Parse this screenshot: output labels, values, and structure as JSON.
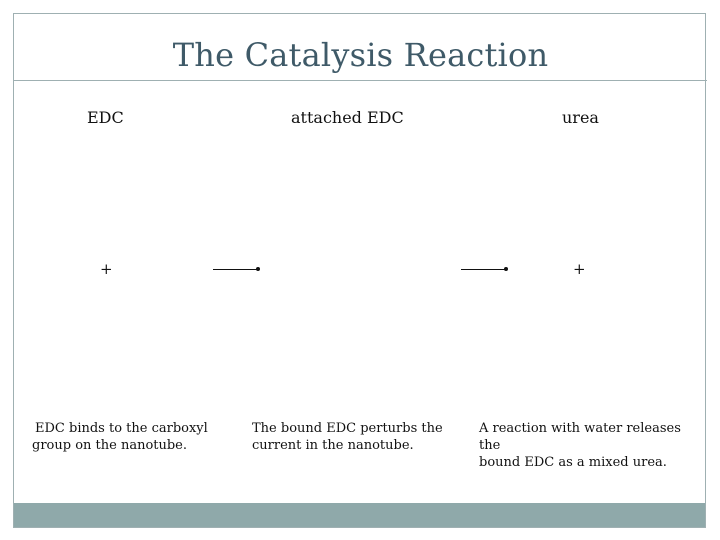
{
  "slide": {
    "title": "The Catalysis Reaction",
    "labels": {
      "edc": "EDC",
      "attached_edc": "attached EDC",
      "urea": "urea"
    },
    "plus_signs": [
      "+",
      "+"
    ],
    "captions": {
      "edc_line1": "EDC binds to the carboxyl",
      "edc_line2": "group on the nanotube.",
      "attached_line1": "The bound EDC perturbs the",
      "attached_line2": "current in the nanotube.",
      "urea_line1": "A reaction with water releases the",
      "urea_line2": "bound EDC as a mixed urea."
    },
    "colors": {
      "title": "#3f5a68",
      "border": "#9fb0b2",
      "footer": "#8fa9aa"
    }
  }
}
